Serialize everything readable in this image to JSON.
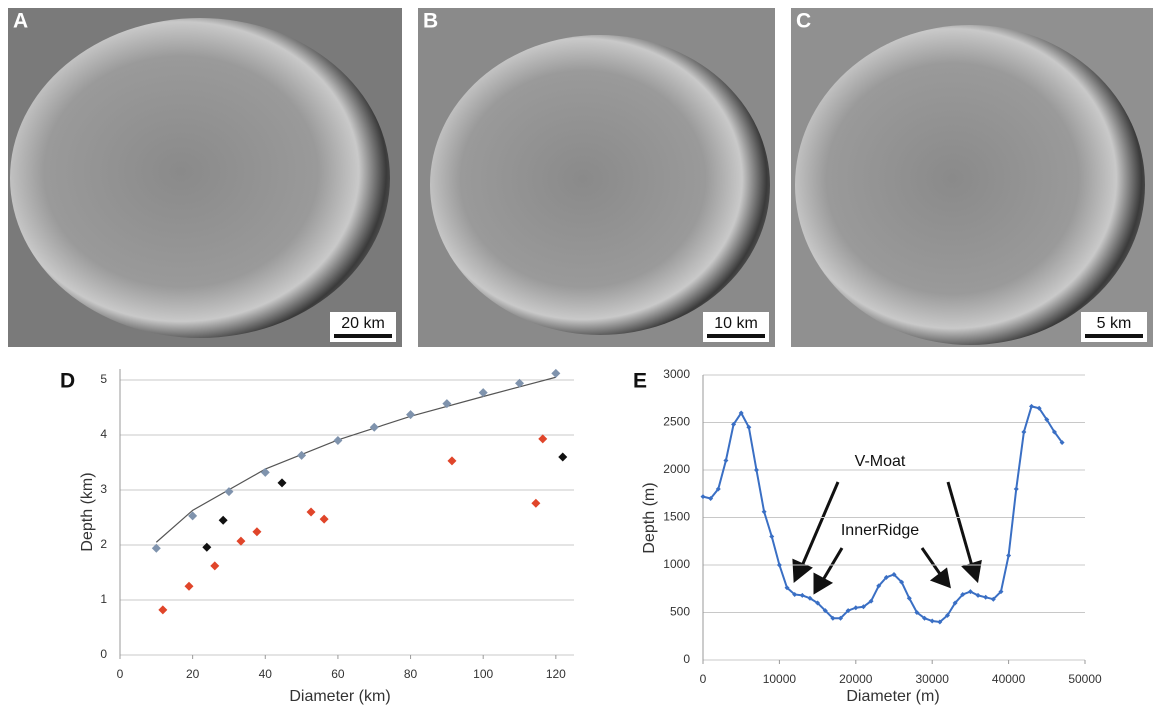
{
  "panels": [
    {
      "label": "A",
      "scale": "20 km"
    },
    {
      "label": "B",
      "scale": "10 km"
    },
    {
      "label": "C",
      "scale": "5 km"
    }
  ],
  "chart_data": [
    {
      "type": "scatter",
      "panel": "D",
      "x_label": "Diameter (km)",
      "y_label": "Depth (km)",
      "xlim": [
        0,
        125
      ],
      "ylim": [
        0,
        5.2
      ],
      "xticks": [
        0,
        20,
        40,
        60,
        80,
        100,
        120
      ],
      "yticks": [
        0,
        1,
        2,
        3,
        4,
        5
      ],
      "grid": true,
      "series": [
        {
          "color": "#7f93ad",
          "x": [
            10,
            20,
            30,
            40,
            50,
            60,
            70,
            80,
            90,
            100,
            110,
            120
          ],
          "values": [
            1.94,
            2.53,
            2.97,
            3.32,
            3.63,
            3.9,
            4.14,
            4.37,
            4.57,
            4.77,
            4.94,
            5.12
          ]
        },
        {
          "color": "#e0452a",
          "x": [
            11.8,
            19,
            26.1,
            33.3,
            37.7,
            52.6,
            56.2,
            91.4,
            114.5,
            116.4
          ],
          "values": [
            0.82,
            1.25,
            1.62,
            2.07,
            2.24,
            2.6,
            2.47,
            3.53,
            2.76,
            3.93
          ]
        },
        {
          "color": "#111111",
          "x": [
            23.9,
            28.4,
            44.6,
            121.9
          ],
          "values": [
            1.96,
            2.45,
            3.13,
            3.6
          ]
        }
      ],
      "fit": {
        "color": "#555555",
        "x": [
          10,
          20,
          40,
          60,
          80,
          100,
          120
        ],
        "values": [
          2.05,
          2.63,
          3.38,
          3.91,
          4.34,
          4.7,
          5.05
        ]
      }
    },
    {
      "type": "line",
      "panel": "E",
      "x_label": "Diameter (m)",
      "y_label": "Depth (m)",
      "xlim": [
        0,
        50000
      ],
      "ylim": [
        0,
        3000
      ],
      "xticks": [
        0,
        10000,
        20000,
        30000,
        40000,
        50000
      ],
      "yticks": [
        0,
        500,
        1000,
        1500,
        2000,
        2500,
        3000
      ],
      "grid": true,
      "annotations": [
        "V-Moat",
        "InnerRidge"
      ],
      "series": [
        {
          "color": "#3a6fc4",
          "x": [
            0,
            1000,
            2000,
            3000,
            4000,
            5000,
            6000,
            7000,
            8000,
            9000,
            10000,
            11000,
            12000,
            13000,
            14000,
            15000,
            16000,
            17000,
            18000,
            19000,
            20000,
            21000,
            22000,
            23000,
            24000,
            25000,
            26000,
            27000,
            28000,
            29000,
            30000,
            31000,
            32000,
            33000,
            34000,
            35000,
            36000,
            37000,
            38000,
            39000,
            40000,
            41000,
            42000,
            43000,
            44000,
            45000,
            46000,
            47000
          ],
          "values": [
            1720,
            1700,
            1800,
            2100,
            2480,
            2600,
            2450,
            2000,
            1560,
            1300,
            1000,
            760,
            690,
            680,
            650,
            600,
            520,
            440,
            440,
            520,
            550,
            560,
            620,
            780,
            870,
            900,
            820,
            650,
            500,
            440,
            410,
            400,
            470,
            600,
            690,
            720,
            680,
            660,
            640,
            720,
            1100,
            1800,
            2400,
            2670,
            2650,
            2530,
            2400,
            2290
          ]
        }
      ]
    }
  ]
}
